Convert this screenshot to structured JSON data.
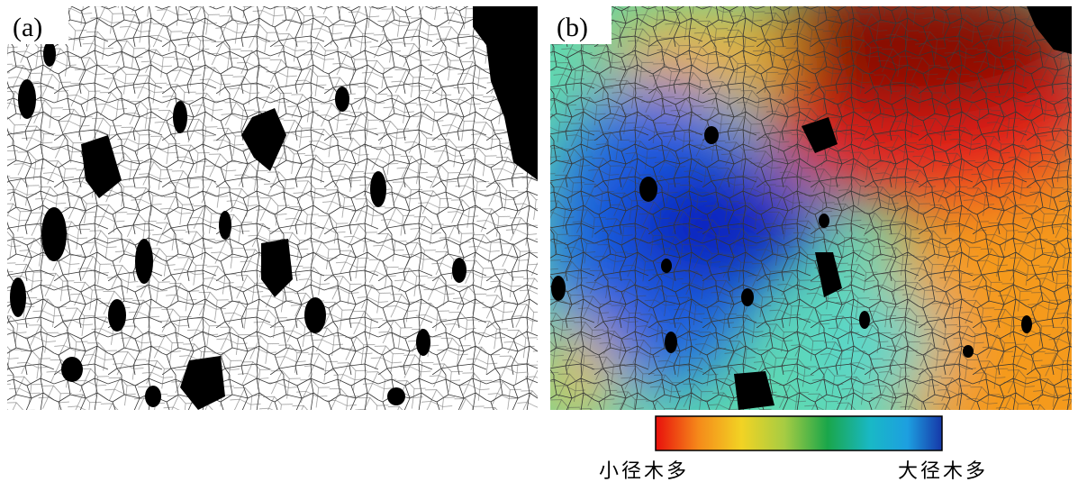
{
  "panels": [
    {
      "label": "(a)"
    },
    {
      "label": "(b)"
    }
  ],
  "colorbar": {
    "labels": [
      "小径木多",
      "大径木多"
    ]
  }
}
